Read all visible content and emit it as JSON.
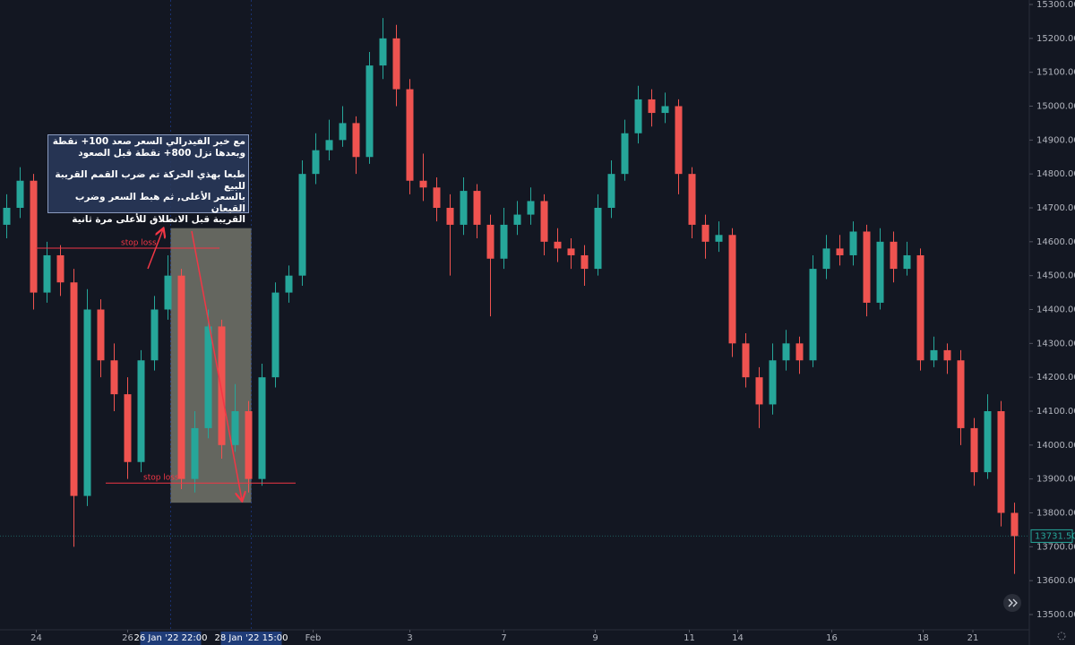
{
  "chart_data": {
    "type": "candlestick",
    "open": [
      14650,
      14700,
      14780,
      14450,
      14560,
      14480,
      13850,
      14400,
      14250,
      14150,
      13950,
      14250,
      14400,
      14500,
      13900,
      14050,
      14350,
      14000,
      14100,
      13900,
      14200,
      14450,
      14500,
      14800,
      14870,
      14900,
      14950,
      14850,
      15120,
      15200,
      15050,
      14780,
      14760,
      14700,
      14650,
      14750,
      14650,
      14550,
      14650,
      14680,
      14720,
      14600,
      14580,
      14560,
      14520,
      14700,
      14800,
      14920,
      15020,
      14980,
      15000,
      14800,
      14650,
      14600,
      14620,
      14300,
      14200,
      14120,
      14250,
      14300,
      14250,
      14520,
      14580,
      14560,
      14630,
      14420,
      14600,
      14520,
      14560,
      14250,
      14280,
      14250,
      14050,
      13920,
      14100,
      13800
    ],
    "high": [
      14740,
      14820,
      14800,
      14600,
      14590,
      14520,
      14460,
      14430,
      14300,
      14200,
      14280,
      14440,
      14560,
      14520,
      14100,
      14400,
      14370,
      14180,
      14130,
      14240,
      14480,
      14530,
      14840,
      14920,
      14960,
      15000,
      14970,
      15160,
      15260,
      15240,
      15080,
      14860,
      14790,
      14740,
      14790,
      14770,
      14680,
      14700,
      14720,
      14760,
      14740,
      14640,
      14610,
      14590,
      14740,
      14840,
      14960,
      15060,
      15050,
      15040,
      15020,
      14820,
      14680,
      14660,
      14640,
      14330,
      14230,
      14300,
      14340,
      14320,
      14560,
      14620,
      14620,
      14660,
      14650,
      14640,
      14630,
      14600,
      14580,
      14320,
      14300,
      14280,
      14080,
      14150,
      14130,
      13830
    ],
    "low": [
      14610,
      14670,
      14400,
      14420,
      14440,
      13700,
      13820,
      14200,
      14100,
      13900,
      13920,
      14220,
      14370,
      13870,
      13860,
      14020,
      13960,
      13980,
      13860,
      13880,
      14170,
      14420,
      14470,
      14770,
      14840,
      14880,
      14800,
      14830,
      15080,
      15000,
      14740,
      14720,
      14660,
      14500,
      14620,
      14610,
      14380,
      14520,
      14620,
      14650,
      14560,
      14540,
      14520,
      14470,
      14500,
      14670,
      14780,
      14890,
      14940,
      14950,
      14740,
      14610,
      14550,
      14570,
      14260,
      14170,
      14050,
      14090,
      14220,
      14210,
      14230,
      14490,
      14530,
      14530,
      14380,
      14400,
      14480,
      14500,
      14220,
      14230,
      14210,
      14000,
      13880,
      13900,
      13760,
      13620
    ],
    "close": [
      14700,
      14780,
      14450,
      14560,
      14480,
      13850,
      14400,
      14250,
      14150,
      13950,
      14250,
      14400,
      14500,
      13900,
      14050,
      14350,
      14000,
      14100,
      13900,
      14200,
      14450,
      14500,
      14800,
      14870,
      14900,
      14950,
      14850,
      15120,
      15200,
      15050,
      14780,
      14760,
      14700,
      14650,
      14750,
      14650,
      14550,
      14650,
      14680,
      14720,
      14600,
      14580,
      14560,
      14520,
      14700,
      14800,
      14920,
      15020,
      14980,
      15000,
      14800,
      14650,
      14600,
      14620,
      14300,
      14200,
      14120,
      14250,
      14300,
      14250,
      14520,
      14580,
      14560,
      14630,
      14420,
      14600,
      14520,
      14560,
      14250,
      14280,
      14250,
      14050,
      13920,
      14100,
      13800,
      13731.5
    ],
    "up_color": "#26a69a",
    "down_color": "#ef5350",
    "ylim": [
      13500,
      15300
    ],
    "yticks": [
      {
        "value": 13500,
        "label": "13500.00"
      },
      {
        "value": 13600,
        "label": "13600.00"
      },
      {
        "value": 13700,
        "label": "13700.00"
      },
      {
        "value": 13800,
        "label": "13800.00"
      },
      {
        "value": 13900,
        "label": "13900.00"
      },
      {
        "value": 14000,
        "label": "14000.00"
      },
      {
        "value": 14100,
        "label": "14100.00"
      },
      {
        "value": 14200,
        "label": "14200.00"
      },
      {
        "value": 14300,
        "label": "14300.00"
      },
      {
        "value": 14400,
        "label": "14400.00"
      },
      {
        "value": 14500,
        "label": "14500.00"
      },
      {
        "value": 14600,
        "label": "14600.00"
      },
      {
        "value": 14700,
        "label": "14700.00"
      },
      {
        "value": 14800,
        "label": "14800.00"
      },
      {
        "value": 14900,
        "label": "14900.00"
      },
      {
        "value": 15000,
        "label": "15000.00"
      },
      {
        "value": 15100,
        "label": "15100.00"
      },
      {
        "value": 15200,
        "label": "15200.00"
      },
      {
        "value": 15300,
        "label": "15300.00"
      }
    ],
    "xticks": [
      {
        "value": 2.2,
        "label": "24"
      },
      {
        "value": 9.0,
        "label": "26"
      },
      {
        "value": 22.8,
        "label": "Feb"
      },
      {
        "value": 30.0,
        "label": "3"
      },
      {
        "value": 37.0,
        "label": "7"
      },
      {
        "value": 43.8,
        "label": "9"
      },
      {
        "value": 50.8,
        "label": "11"
      },
      {
        "value": 54.4,
        "label": "14"
      },
      {
        "value": 61.4,
        "label": "16"
      },
      {
        "value": 68.2,
        "label": "18"
      },
      {
        "value": 71.9,
        "label": "21"
      }
    ],
    "range_labels": [
      {
        "value": 12.2,
        "label": "26 Jan '22  22:00"
      },
      {
        "value": 18.2,
        "label": "28 Jan '22  15:00"
      }
    ],
    "range_box": {
      "high": 14640,
      "low": 13830
    },
    "last_price": {
      "value": 13731.5,
      "label": "13731.50"
    },
    "stop_losses": [
      {
        "value": 14581,
        "label": "stop loss"
      },
      {
        "value": 13888,
        "label": "stop loss"
      }
    ],
    "note": [
      "مع خبر الفيدرالي السعر صعد 100+ نقطة",
      "وبعدها نزل 800+ نقطة قبل الصعود",
      "طبعا بهذي الحركة تم ضرب القمم القريبة للبيع",
      "بالسعر الأعلى, ثم هبط السعر وضرب القيعان",
      "القريبة قبل الانطلاق للأعلى مرة ثانية"
    ]
  }
}
